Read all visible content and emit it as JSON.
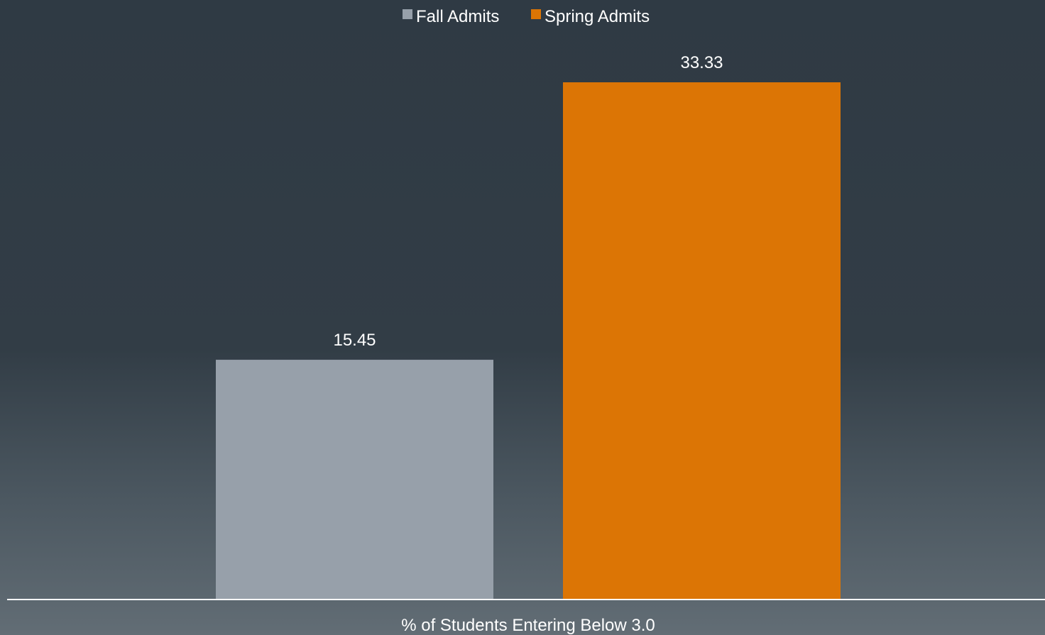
{
  "chart_data": {
    "type": "bar",
    "categories": [
      "% of Students Entering Below 3.0"
    ],
    "series": [
      {
        "name": "Fall Admits",
        "values": [
          15.45
        ],
        "color": "#97a0aa"
      },
      {
        "name": "Spring Admits",
        "values": [
          33.33
        ],
        "color": "#dc7505"
      }
    ],
    "ylim": [
      0,
      35
    ],
    "grid": false,
    "legend": "top-center",
    "axis_color": "#ffffff"
  }
}
